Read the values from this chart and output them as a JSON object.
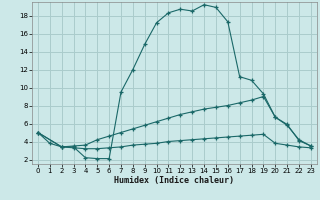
{
  "xlabel": "Humidex (Indice chaleur)",
  "bg_color": "#cce8e8",
  "grid_color": "#aacccc",
  "line_color": "#1a6868",
  "xlim": [
    -0.5,
    23.5
  ],
  "ylim": [
    1.5,
    19.5
  ],
  "xticks": [
    0,
    1,
    2,
    3,
    4,
    5,
    6,
    7,
    8,
    9,
    10,
    11,
    12,
    13,
    14,
    15,
    16,
    17,
    18,
    19,
    20,
    21,
    22,
    23
  ],
  "yticks": [
    2,
    4,
    6,
    8,
    10,
    12,
    14,
    16,
    18
  ],
  "line1_x": [
    0,
    1,
    2,
    3,
    4,
    5,
    6,
    7,
    8,
    9,
    10,
    11,
    12,
    13,
    14,
    15,
    16,
    17,
    18,
    19,
    20,
    21,
    22,
    23
  ],
  "line1_y": [
    5.0,
    3.8,
    3.4,
    3.4,
    2.2,
    2.1,
    2.1,
    9.5,
    12.0,
    14.8,
    17.2,
    18.3,
    18.7,
    18.5,
    19.2,
    18.9,
    17.3,
    11.2,
    10.8,
    9.3,
    6.7,
    5.8,
    4.2,
    3.5
  ],
  "line2_x": [
    0,
    2,
    3,
    4,
    5,
    6,
    7,
    8,
    9,
    10,
    11,
    12,
    13,
    14,
    15,
    16,
    17,
    18,
    19,
    20,
    21,
    22,
    23
  ],
  "line2_y": [
    5.0,
    3.4,
    3.5,
    3.6,
    4.2,
    4.6,
    5.0,
    5.4,
    5.8,
    6.2,
    6.6,
    7.0,
    7.3,
    7.6,
    7.8,
    8.0,
    8.3,
    8.6,
    9.0,
    6.7,
    5.9,
    4.1,
    3.5
  ],
  "line3_x": [
    0,
    2,
    3,
    4,
    5,
    6,
    7,
    8,
    9,
    10,
    11,
    12,
    13,
    14,
    15,
    16,
    17,
    18,
    19,
    20,
    21,
    22,
    23
  ],
  "line3_y": [
    5.0,
    3.4,
    3.3,
    3.2,
    3.2,
    3.3,
    3.4,
    3.6,
    3.7,
    3.8,
    4.0,
    4.1,
    4.2,
    4.3,
    4.4,
    4.5,
    4.6,
    4.7,
    4.8,
    3.8,
    3.6,
    3.4,
    3.3
  ]
}
